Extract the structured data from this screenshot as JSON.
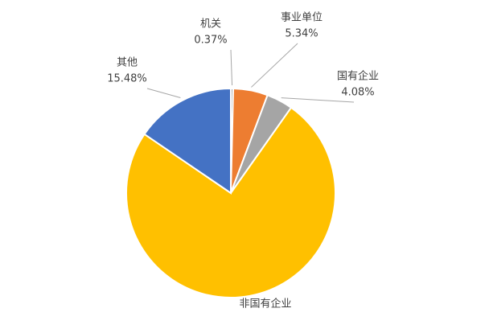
{
  "chart_data": {
    "type": "pie",
    "categories": [
      "机关",
      "事业单位",
      "国有企业",
      "非国有企业",
      "其他"
    ],
    "values": [
      0.37,
      5.34,
      4.08,
      74.73,
      15.48
    ],
    "value_labels": [
      "0.37%",
      "5.34%",
      "4.08%",
      null,
      "15.48%"
    ],
    "colors": [
      "#a5a5a5",
      "#ed7d31",
      "#a5a5a5",
      "#ffc000",
      "#4472c4"
    ]
  }
}
